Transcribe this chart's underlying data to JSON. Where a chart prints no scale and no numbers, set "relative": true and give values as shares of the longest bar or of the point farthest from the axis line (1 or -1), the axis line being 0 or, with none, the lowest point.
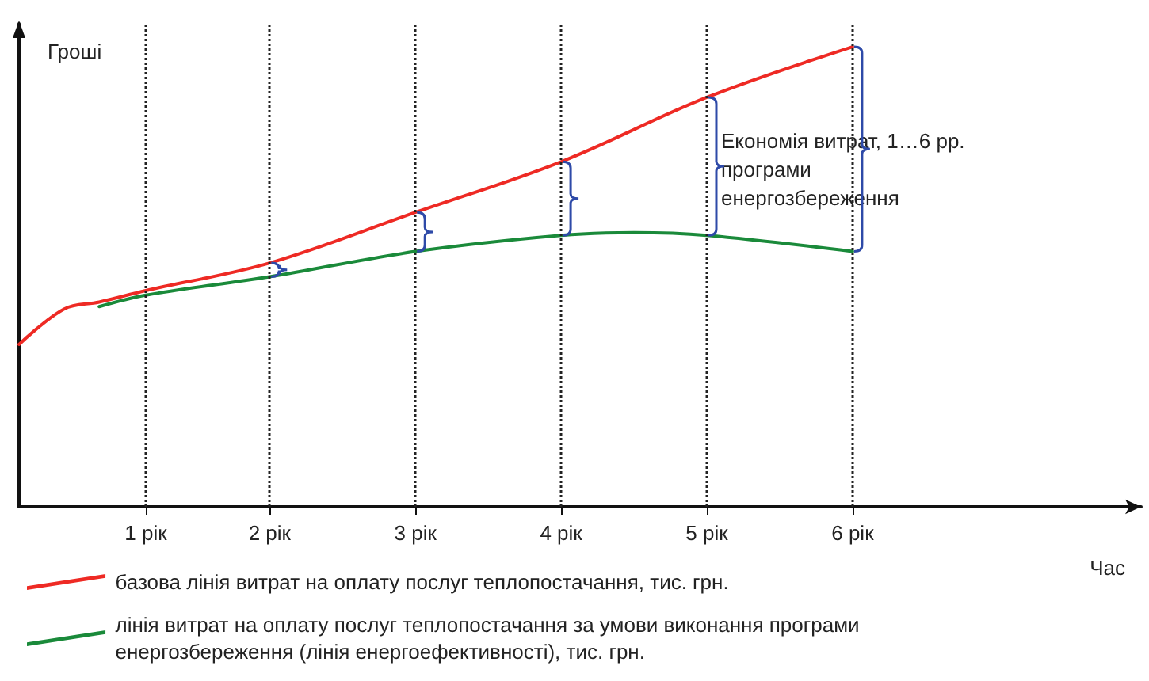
{
  "chart_data": {
    "type": "line",
    "relative": true,
    "ylabel": "Гроші",
    "xlabel": "Час",
    "xlim": [
      0.28,
      7.98
    ],
    "xticks": [
      {
        "value": 1.15,
        "label": "1 рік"
      },
      {
        "value": 2,
        "label": "2 рік"
      },
      {
        "value": 3,
        "label": "3 рік"
      },
      {
        "value": 4,
        "label": "4 рік"
      },
      {
        "value": 5,
        "label": "5 рік"
      },
      {
        "value": 6,
        "label": "6 рік"
      }
    ],
    "ref_lines": [
      {
        "axis": "x",
        "value": 1.15,
        "line_style": "dotted",
        "color": "#222222"
      },
      {
        "axis": "x",
        "value": 2,
        "line_style": "dotted",
        "color": "#222222"
      },
      {
        "axis": "x",
        "value": 3,
        "line_style": "dotted",
        "color": "#222222"
      },
      {
        "axis": "x",
        "value": 4,
        "line_style": "dotted",
        "color": "#222222"
      },
      {
        "axis": "x",
        "value": 5,
        "line_style": "dotted",
        "color": "#222222"
      },
      {
        "axis": "x",
        "value": 6,
        "line_style": "dotted",
        "color": "#222222"
      }
    ],
    "series": [
      {
        "name": "базова лінія витрат на оплату послуг теплопостачання, тис. грн.",
        "color": "#ee2a24",
        "x": [
          0.28,
          0.59,
          0.83,
          1.15,
          2,
          3,
          4,
          5,
          6
        ],
        "values": [
          0.353,
          0.43,
          0.445,
          0.47,
          0.53,
          0.64,
          0.75,
          0.89,
          1
        ]
      },
      {
        "name": "лінія витрат на оплату послуг теплопостачання за умови виконання програми енергозбереження (лінія енергоефективності), тис. грн.",
        "color": "#1a8a3a",
        "x": [
          0.83,
          1.15,
          2,
          3,
          4,
          4.5,
          5,
          6
        ],
        "values": [
          0.435,
          0.46,
          0.5,
          0.555,
          0.59,
          0.596,
          0.59,
          0.555
        ]
      }
    ],
    "annotations": [
      "Економія витрат, 1…6 рр. програми енергозбереження"
    ],
    "marker": "none",
    "line_style": "solid",
    "grid": false,
    "legend": "bottom left"
  }
}
